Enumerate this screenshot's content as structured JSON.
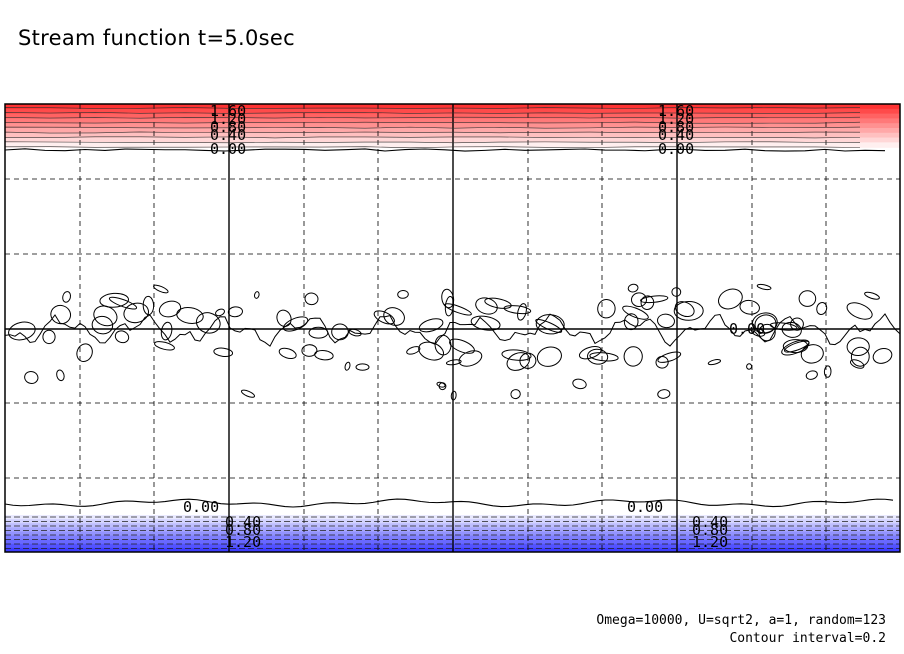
{
  "title": "Stream function t=5.0sec",
  "parameters_note": "Omega=10000, U=sqrt2, a=1, random=123",
  "contour_interval_note": "Contour interval=0.2",
  "chart_data": {
    "type": "contour",
    "field": "stream function",
    "time_sec": 5.0,
    "contour_interval": 0.2,
    "grid": "dashed",
    "colormap": {
      "positive": "#ff3333",
      "zero": "#ffffff",
      "negative": "#3333ff"
    },
    "top_band_contour_labels": [
      "1.60",
      "1.20",
      "0.80",
      "0.40",
      "0.00"
    ],
    "middle_contour_label": "0.00",
    "bottom_band_contour_labels": [
      "0.00",
      "0.40",
      "0.80",
      "1.20"
    ]
  }
}
